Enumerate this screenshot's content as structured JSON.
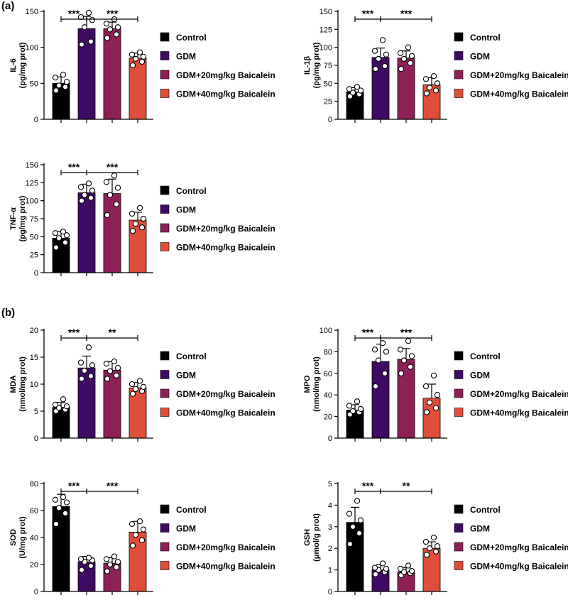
{
  "panels": [
    {
      "label": "(a)"
    },
    {
      "label": "(b)"
    }
  ],
  "legend": [
    {
      "name": "Control",
      "color": "#000000"
    },
    {
      "name": "GDM",
      "color": "#3f0a63"
    },
    {
      "name": "GDM+20mg/kg Baicalein",
      "color": "#8e1f57"
    },
    {
      "name": "GDM+40mg/kg Baicalein",
      "color": "#e04e3a"
    }
  ],
  "chart_data": [
    {
      "type": "bar",
      "title": "",
      "ylabel_line1": "IL-6",
      "ylabel_line2": "(pg/mg prot)",
      "categories": [
        "Control",
        "GDM",
        "GDM+20mg/kg Baicalein",
        "GDM+40mg/kg Baicalein"
      ],
      "values": [
        50,
        126,
        126,
        85
      ],
      "errors": [
        9,
        17,
        9,
        7
      ],
      "points": [
        [
          40,
          45,
          47,
          52,
          58,
          62
        ],
        [
          104,
          108,
          128,
          138,
          142,
          148
        ],
        [
          113,
          118,
          125,
          128,
          133,
          139
        ],
        [
          75,
          80,
          84,
          87,
          90,
          93
        ]
      ],
      "ylim": [
        0,
        150
      ],
      "yticks": [
        0,
        50,
        100,
        150
      ],
      "significance": [
        {
          "from": 0,
          "to": 1,
          "label": "***"
        },
        {
          "from": 1,
          "to": 3,
          "label": "***"
        }
      ]
    },
    {
      "type": "bar",
      "title": "",
      "ylabel_line1": "IL-1β",
      "ylabel_line2": "(pg/mg prot)",
      "categories": [
        "Control",
        "GDM",
        "GDM+20mg/kg Baicalein",
        "GDM+40mg/kg Baicalein"
      ],
      "values": [
        38,
        86,
        85,
        48
      ],
      "errors": [
        6,
        13,
        10,
        10
      ],
      "points": [
        [
          32,
          35,
          37,
          40,
          42,
          45
        ],
        [
          70,
          74,
          84,
          90,
          95,
          110
        ],
        [
          70,
          78,
          84,
          88,
          92,
          100
        ],
        [
          36,
          40,
          44,
          50,
          56,
          60
        ]
      ],
      "ylim": [
        0,
        150
      ],
      "yticks": [
        0,
        25,
        50,
        75,
        100,
        125,
        150
      ],
      "significance": [
        {
          "from": 0,
          "to": 1,
          "label": "***"
        },
        {
          "from": 1,
          "to": 3,
          "label": "***"
        }
      ]
    },
    {
      "type": "bar",
      "title": "",
      "ylabel_line1": "TNF-α",
      "ylabel_line2": "(pg/mg prot)",
      "categories": [
        "Control",
        "GDM",
        "GDM+20mg/kg Baicalein",
        "GDM+40mg/kg Baicalein"
      ],
      "values": [
        48,
        111,
        110,
        73
      ],
      "errors": [
        9,
        12,
        20,
        11
      ],
      "points": [
        [
          35,
          42,
          48,
          52,
          55,
          57
        ],
        [
          100,
          104,
          108,
          114,
          119,
          124
        ],
        [
          80,
          95,
          108,
          118,
          126,
          135
        ],
        [
          58,
          63,
          68,
          75,
          82,
          90
        ]
      ],
      "ylim": [
        0,
        150
      ],
      "yticks": [
        0,
        25,
        50,
        75,
        100,
        125,
        150
      ],
      "significance": [
        {
          "from": 0,
          "to": 1,
          "label": "***"
        },
        {
          "from": 1,
          "to": 3,
          "label": "***"
        }
      ]
    },
    {
      "type": "bar",
      "title": "",
      "ylabel_line1": "MDA",
      "ylabel_line2": "(nmol/mg prot)",
      "categories": [
        "Control",
        "GDM",
        "GDM+20mg/kg Baicalein",
        "GDM+40mg/kg Baicalein"
      ],
      "values": [
        5.7,
        13,
        12.6,
        9.3
      ],
      "errors": [
        0.9,
        2.2,
        1.6,
        1.0
      ],
      "points": [
        [
          5.0,
          5.3,
          5.6,
          5.9,
          6.2,
          7.2
        ],
        [
          11.0,
          11.5,
          12.5,
          13.5,
          14.0,
          16.8
        ],
        [
          11.0,
          11.6,
          12.4,
          13.0,
          13.8,
          14.2
        ],
        [
          8.2,
          8.7,
          9.1,
          9.5,
          10.0,
          10.6
        ]
      ],
      "ylim": [
        0,
        20
      ],
      "yticks": [
        0,
        5,
        10,
        15,
        20
      ],
      "significance": [
        {
          "from": 0,
          "to": 1,
          "label": "***"
        },
        {
          "from": 1,
          "to": 3,
          "label": "**"
        }
      ]
    },
    {
      "type": "bar",
      "title": "",
      "ylabel_line1": "MPO",
      "ylabel_line2": "(nmol/mg prot)",
      "categories": [
        "Control",
        "GDM",
        "GDM+20mg/kg Baicalein",
        "GDM+40mg/kg Baicalein"
      ],
      "values": [
        26,
        71,
        73,
        37
      ],
      "errors": [
        5,
        16,
        10,
        13
      ],
      "points": [
        [
          22,
          24,
          25,
          27,
          30,
          34
        ],
        [
          48,
          60,
          72,
          80,
          82,
          88
        ],
        [
          60,
          66,
          72,
          76,
          82,
          90
        ],
        [
          24,
          28,
          33,
          40,
          48,
          58
        ]
      ],
      "ylim": [
        0,
        100
      ],
      "yticks": [
        0,
        20,
        40,
        60,
        80,
        100
      ],
      "significance": [
        {
          "from": 0,
          "to": 1,
          "label": "***"
        },
        {
          "from": 1,
          "to": 3,
          "label": "***"
        }
      ]
    },
    {
      "type": "bar",
      "title": "",
      "ylabel_line1": "SOD",
      "ylabel_line2": "(U/mg prot)",
      "categories": [
        "Control",
        "GDM",
        "GDM+20mg/kg Baicalein",
        "GDM+40mg/kg Baicalein"
      ],
      "values": [
        63,
        22,
        21,
        44
      ],
      "errors": [
        9,
        4,
        4,
        8
      ],
      "points": [
        [
          50,
          58,
          62,
          66,
          68,
          70
        ],
        [
          16,
          19,
          22,
          23,
          24,
          25
        ],
        [
          15,
          18,
          20,
          22,
          24,
          26
        ],
        [
          34,
          38,
          42,
          46,
          50,
          52
        ]
      ],
      "ylim": [
        0,
        80
      ],
      "yticks": [
        0,
        20,
        40,
        60,
        80
      ],
      "significance": [
        {
          "from": 0,
          "to": 1,
          "label": "***"
        },
        {
          "from": 1,
          "to": 3,
          "label": "***"
        }
      ]
    },
    {
      "type": "bar",
      "title": "",
      "ylabel_line1": "GSH",
      "ylabel_line2": "(μmol/g prot)",
      "categories": [
        "Control",
        "GDM",
        "GDM+20mg/kg Baicalein",
        "GDM+40mg/kg Baicalein"
      ],
      "values": [
        3.2,
        1.0,
        0.9,
        2.0
      ],
      "errors": [
        0.7,
        0.25,
        0.2,
        0.3
      ],
      "points": [
        [
          2.2,
          2.7,
          3.0,
          3.3,
          3.6,
          4.2
        ],
        [
          0.8,
          0.9,
          1.0,
          1.05,
          1.1,
          1.3
        ],
        [
          0.75,
          0.85,
          0.9,
          0.95,
          1.05,
          1.2
        ],
        [
          1.7,
          1.85,
          2.0,
          2.1,
          2.3,
          2.5
        ]
      ],
      "ylim": [
        0,
        5
      ],
      "yticks": [
        0,
        1,
        2,
        3,
        4,
        5
      ],
      "significance": [
        {
          "from": 0,
          "to": 1,
          "label": "***"
        },
        {
          "from": 1,
          "to": 3,
          "label": "**"
        }
      ]
    }
  ]
}
